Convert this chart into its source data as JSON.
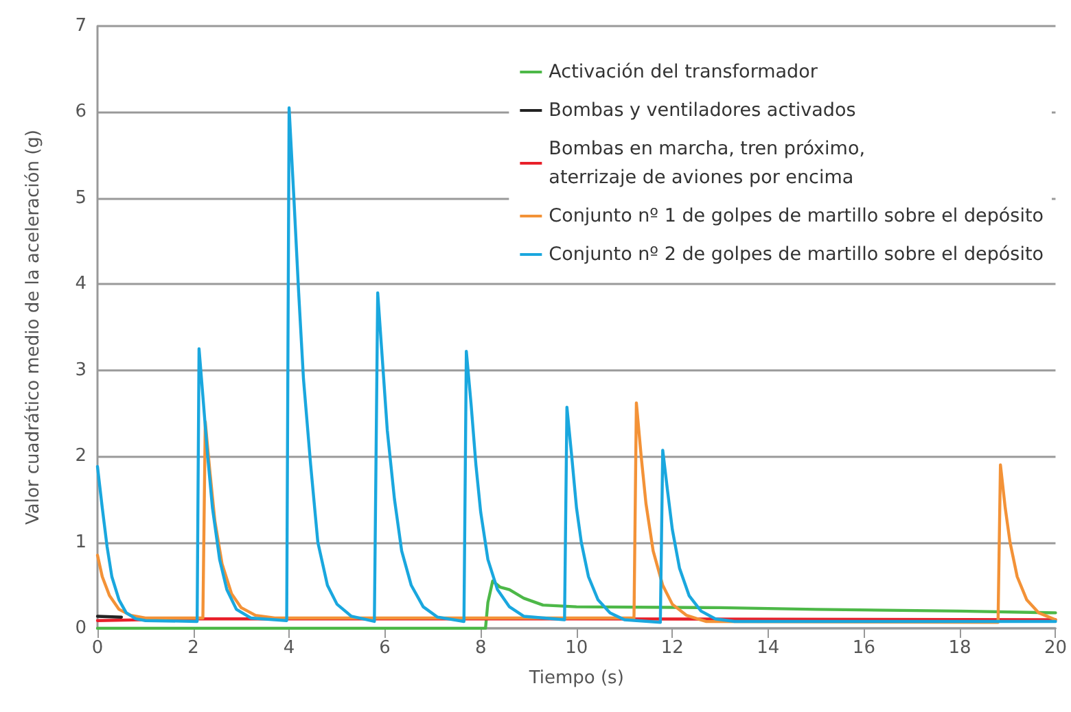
{
  "chart_data": {
    "type": "line",
    "xlabel": "Tiempo (s)",
    "ylabel": "Valor cuadrático medio de la aceleración (g)",
    "xlim": [
      0,
      20
    ],
    "xticks": [
      0,
      2,
      4,
      6,
      8,
      10,
      12,
      14,
      16,
      18,
      20
    ],
    "ylim": [
      0,
      7
    ],
    "yticks": [
      0,
      1,
      2,
      3,
      4,
      5,
      6,
      7
    ],
    "grid": "y",
    "legend": "top right",
    "marker": "none",
    "line_style": "solid",
    "series": [
      {
        "name": "Activación del transformador",
        "color": "#4db848",
        "x": [
          0,
          8.1,
          8.15,
          8.25,
          8.4,
          8.6,
          8.9,
          9.3,
          10,
          13,
          15,
          18,
          20
        ],
        "values": [
          0,
          0,
          0.3,
          0.55,
          0.48,
          0.45,
          0.35,
          0.27,
          0.25,
          0.24,
          0.22,
          0.2,
          0.18
        ]
      },
      {
        "name": "Bombas y ventiladores activados",
        "color": "#222222",
        "x": [
          0,
          0.5
        ],
        "values": [
          0.14,
          0.13
        ]
      },
      {
        "name": "Bombas en marcha, tren próximo,\naterrizaje de aviones por encima",
        "color": "#e8202a",
        "x": [
          0,
          2,
          10,
          20
        ],
        "values": [
          0.09,
          0.11,
          0.11,
          0.1
        ]
      },
      {
        "name": "Conjunto nº 1 de golpes de martillo sobre el depósito",
        "color": "#f39237",
        "x": [
          0,
          0.1,
          0.25,
          0.45,
          0.7,
          1.0,
          2.2,
          2.25,
          2.35,
          2.45,
          2.6,
          2.8,
          3.0,
          3.3,
          3.7,
          11.2,
          11.25,
          11.35,
          11.45,
          11.6,
          11.8,
          12.0,
          12.3,
          12.7,
          18.8,
          18.85,
          18.95,
          19.05,
          19.2,
          19.4,
          19.65,
          20
        ],
        "values": [
          0.85,
          0.6,
          0.38,
          0.22,
          0.15,
          0.12,
          0.12,
          2.4,
          1.8,
          1.25,
          0.75,
          0.4,
          0.24,
          0.15,
          0.12,
          0.12,
          2.62,
          2.0,
          1.45,
          0.9,
          0.5,
          0.28,
          0.15,
          0.08,
          0.07,
          1.9,
          1.4,
          1.0,
          0.6,
          0.33,
          0.18,
          0.1
        ]
      },
      {
        "name": "Conjunto nº 2 de golpes de martillo sobre el depósito",
        "color": "#1aa7de",
        "x": [
          0,
          0.1,
          0.2,
          0.3,
          0.45,
          0.6,
          0.8,
          1.0,
          2.08,
          2.12,
          2.2,
          2.3,
          2.4,
          2.55,
          2.7,
          2.9,
          3.2,
          3.95,
          4.0,
          4.1,
          4.2,
          4.3,
          4.45,
          4.6,
          4.8,
          5.0,
          5.3,
          5.78,
          5.85,
          5.95,
          6.05,
          6.2,
          6.35,
          6.55,
          6.8,
          7.1,
          7.65,
          7.7,
          7.8,
          7.9,
          8.0,
          8.15,
          8.35,
          8.6,
          8.9,
          9.75,
          9.8,
          9.9,
          10.0,
          10.1,
          10.25,
          10.45,
          10.7,
          11.0,
          11.75,
          11.8,
          11.9,
          12.0,
          12.15,
          12.35,
          12.6,
          12.9,
          13.3,
          20
        ],
        "values": [
          1.88,
          1.4,
          0.95,
          0.6,
          0.33,
          0.18,
          0.11,
          0.09,
          0.08,
          3.25,
          2.7,
          2.0,
          1.4,
          0.8,
          0.45,
          0.22,
          0.12,
          0.09,
          6.05,
          5.0,
          3.9,
          2.9,
          1.9,
          1.0,
          0.5,
          0.28,
          0.14,
          0.08,
          3.9,
          3.1,
          2.3,
          1.5,
          0.9,
          0.5,
          0.25,
          0.13,
          0.08,
          3.22,
          2.6,
          1.9,
          1.35,
          0.8,
          0.45,
          0.25,
          0.14,
          0.1,
          2.57,
          2.0,
          1.4,
          1.0,
          0.6,
          0.33,
          0.18,
          0.1,
          0.07,
          2.07,
          1.6,
          1.15,
          0.7,
          0.38,
          0.2,
          0.11,
          0.08,
          0.08
        ]
      }
    ]
  }
}
